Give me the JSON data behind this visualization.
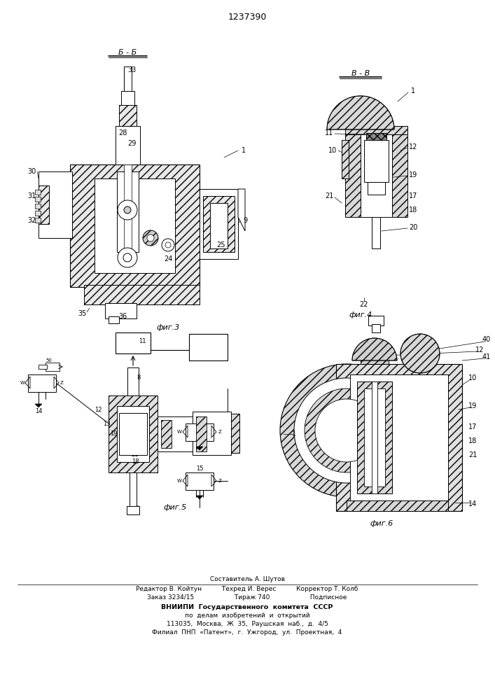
{
  "title": "1237390",
  "background_color": "#ffffff",
  "footer_lines": [
    "Составитель А. Шутов",
    "Редактор В. Койтун          Техред И. Верес          Корректор Т. Колб",
    "Заказ 3234/15                    Тираж 740                    Подписное",
    "ВНИИПИ  Государственного  комитета  СССР",
    "по  делам  изобретений  и  открытий",
    "113035,  Москва,  Ж  35,  Раушская  наб.,  д.  4/5",
    "Филиал  ПНП  «Патент»,  г.  Ужгород,  ул.  Проектная,  4"
  ],
  "fig3_label": "Б - Б",
  "fig3_caption": "фиг.3",
  "fig4_label": "В - В",
  "fig4_caption": "фиг.4",
  "fig5_caption": "фиг.5",
  "fig6_caption": "фиг.6"
}
